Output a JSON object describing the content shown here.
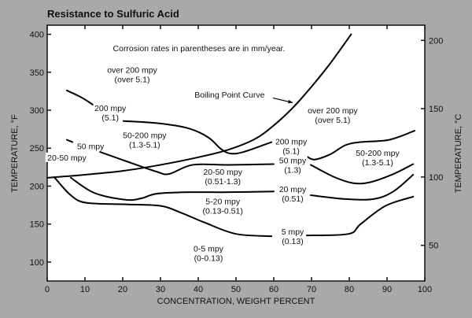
{
  "chart_data": {
    "type": "line",
    "title": "Resistance to Sulfuric Acid",
    "xlabel": "CONCENTRATION, WEIGHT PERCENT",
    "ylabel": "TEMPERATURE, °F",
    "ylabel_right": "TEMPERATURE, °C",
    "xlim": [
      0,
      100
    ],
    "ylim": [
      75,
      412
    ],
    "x_ticks": [
      0,
      10,
      20,
      30,
      40,
      50,
      60,
      70,
      80,
      90,
      100
    ],
    "y_ticks": [
      100,
      150,
      200,
      250,
      300,
      350,
      400
    ],
    "y_right_ticks_celsius": [
      50,
      100,
      150,
      200
    ],
    "grid": false,
    "series": [
      {
        "name": "Boiling Point Curve",
        "points": [
          [
            0,
            211
          ],
          [
            10,
            215
          ],
          [
            20,
            220
          ],
          [
            30,
            228
          ],
          [
            40,
            238
          ],
          [
            48,
            248
          ],
          [
            55,
            262
          ],
          [
            60,
            280
          ],
          [
            65,
            303
          ],
          [
            70,
            331
          ],
          [
            75,
            362
          ],
          [
            80.5,
            400
          ]
        ]
      },
      {
        "name": "200 mpy (left)",
        "points": [
          [
            5.2,
            326
          ],
          [
            9,
            317
          ],
          [
            12.5,
            306
          ]
        ]
      },
      {
        "name": "200 mpy",
        "points": [
          [
            19,
            286
          ],
          [
            29,
            283
          ],
          [
            37.5,
            276
          ],
          [
            42.7,
            264
          ],
          [
            46,
            249
          ],
          [
            48.5,
            243
          ],
          [
            52,
            245
          ],
          [
            59.4,
            258
          ]
        ]
      },
      {
        "name": "50-200 mpy boundary (right)",
        "points": [
          [
            68.75,
            239
          ],
          [
            70.8,
            235
          ],
          [
            75,
            242
          ],
          [
            79,
            254
          ],
          [
            83,
            258
          ],
          [
            90.6,
            261
          ],
          [
            97.3,
            273
          ]
        ]
      },
      {
        "name": "50 mpy (left)",
        "points": [
          [
            5.2,
            261
          ],
          [
            6.7,
            258
          ]
        ]
      },
      {
        "name": "50 mpy",
        "points": [
          [
            14,
            245
          ],
          [
            20.8,
            233
          ],
          [
            29,
            219
          ],
          [
            32.3,
            216
          ],
          [
            38.5,
            228
          ],
          [
            48,
            228
          ],
          [
            60,
            229
          ]
        ]
      },
      {
        "name": "50 mpy (right)",
        "points": [
          [
            69.8,
            228
          ],
          [
            76,
            212
          ],
          [
            81,
            204
          ],
          [
            85.4,
            205
          ],
          [
            91.7,
            216
          ],
          [
            96.9,
            229
          ]
        ]
      },
      {
        "name": "20 mpy",
        "points": [
          [
            6.25,
            211
          ],
          [
            12.5,
            191
          ],
          [
            20.8,
            182
          ],
          [
            25,
            184
          ],
          [
            29,
            190
          ],
          [
            37.5,
            192
          ],
          [
            48,
            192
          ],
          [
            60,
            193
          ]
        ]
      },
      {
        "name": "20 mpy (right)",
        "points": [
          [
            69.8,
            188
          ],
          [
            79,
            183
          ],
          [
            86.5,
            183
          ],
          [
            91.7,
            193
          ],
          [
            96.9,
            215
          ]
        ]
      },
      {
        "name": "5 mpy",
        "points": [
          [
            2,
            211
          ],
          [
            6.25,
            188
          ],
          [
            10.4,
            178
          ],
          [
            20.8,
            176
          ],
          [
            30,
            174
          ],
          [
            35.4,
            165
          ],
          [
            41.7,
            152
          ],
          [
            50,
            137
          ],
          [
            59.4,
            134
          ]
        ]
      },
      {
        "name": "5 mpy (right)",
        "points": [
          [
            68.75,
            135
          ],
          [
            79.8,
            137
          ],
          [
            83,
            150
          ],
          [
            89.6,
            174
          ],
          [
            96.9,
            186
          ]
        ]
      }
    ],
    "annotations": [
      {
        "lines": [
          "Corrosion rates in parentheses are in mm/year."
        ],
        "x": 40.2,
        "y": 382
      },
      {
        "lines": [
          "over 200 mpy",
          "(over 5.1)"
        ],
        "x": 22.5,
        "y": 347
      },
      {
        "lines": [
          "Boiling Point Curve"
        ],
        "x": 48.3,
        "y": 321
      },
      {
        "lines": [
          "200 mpy",
          "(5.1)"
        ],
        "x": 16.7,
        "y": 297
      },
      {
        "lines": [
          "50-200 mpy",
          "(1.3-5.1)"
        ],
        "x": 25.8,
        "y": 261
      },
      {
        "lines": [
          "50 mpy"
        ],
        "x": 11.5,
        "y": 253
      },
      {
        "lines": [
          "20-50 mpy"
        ],
        "x": 5.2,
        "y": 238
      },
      {
        "lines": [
          "200 mpy",
          "(5.1)"
        ],
        "x": 64.6,
        "y": 253
      },
      {
        "lines": [
          "over 200 mpy",
          "(over 5.1)"
        ],
        "x": 75.6,
        "y": 294
      },
      {
        "lines": [
          "50-200 mpy",
          "(1.3-5.1)"
        ],
        "x": 87.5,
        "y": 238
      },
      {
        "lines": [
          "20-50 mpy",
          "(0.51-1.3)"
        ],
        "x": 46.5,
        "y": 213
      },
      {
        "lines": [
          "50 mpy",
          "(1.3)"
        ],
        "x": 65,
        "y": 228
      },
      {
        "lines": [
          "20 mpy",
          "(0.51)"
        ],
        "x": 65,
        "y": 190
      },
      {
        "lines": [
          "5-20 mpy",
          "(0.13-0.51)"
        ],
        "x": 46.5,
        "y": 174
      },
      {
        "lines": [
          "5 mpy",
          "(0.13)"
        ],
        "x": 65,
        "y": 134
      },
      {
        "lines": [
          "0-5 mpy",
          "(0-0.13)"
        ],
        "x": 42.7,
        "y": 112
      }
    ],
    "arrow": {
      "from": [
        57.3,
        319
      ],
      "to": [
        65,
        310
      ]
    }
  }
}
